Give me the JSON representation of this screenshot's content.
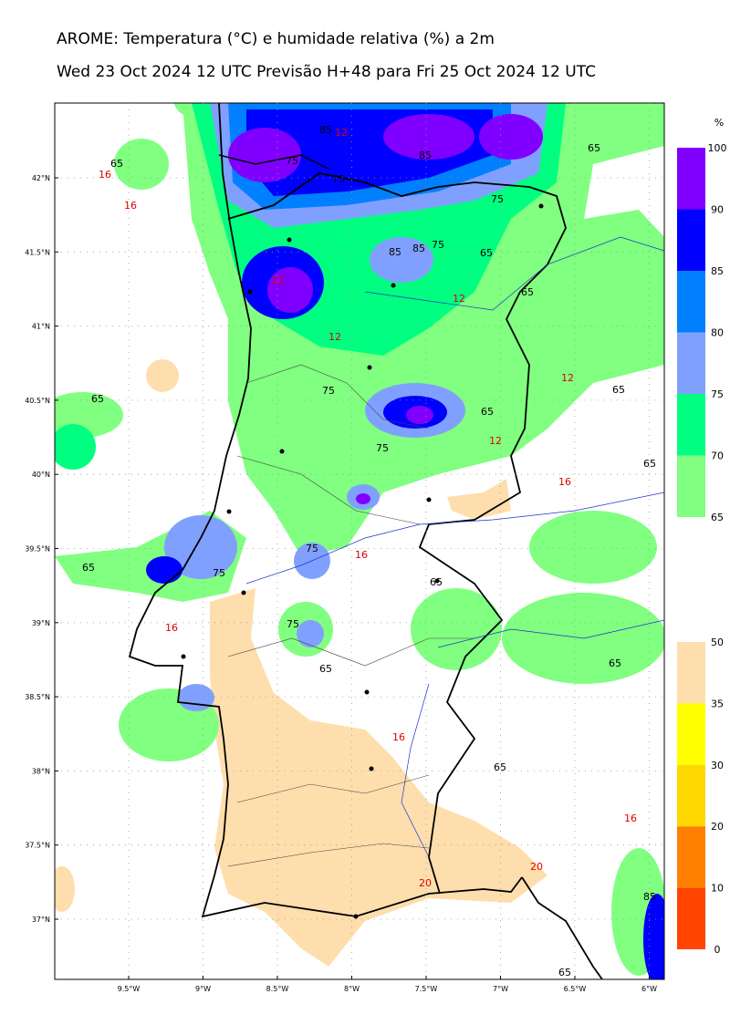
{
  "title": "AROME: Temperatura (°C) e humidade relativa (%) a 2m",
  "subtitle": "Wed 23 Oct 2024 12 UTC Previsão H+48 para Fri 25 Oct 2024 12 UTC",
  "map": {
    "lat_ticks": [
      "42°N",
      "41.5°N",
      "41°N",
      "40.5°N",
      "40°N",
      "39.5°N",
      "39°N",
      "38.5°N",
      "38°N",
      "37.5°N",
      "37°N"
    ],
    "lon_ticks": [
      "9.5°W",
      "9°W",
      "8.5°W",
      "8°W",
      "7.5°W",
      "7°W",
      "6.5°W",
      "6°W"
    ],
    "contour_labels": [
      {
        "text": "65",
        "color": "#000000"
      },
      {
        "text": "65",
        "color": "#000000"
      },
      {
        "text": "65",
        "color": "#000000"
      },
      {
        "text": "16",
        "color": "#e00000"
      },
      {
        "text": "16",
        "color": "#e00000"
      },
      {
        "text": "75",
        "color": "#000000"
      },
      {
        "text": "85",
        "color": "#000000"
      },
      {
        "text": "12",
        "color": "#e00000"
      },
      {
        "text": "85",
        "color": "#000000"
      },
      {
        "text": "75",
        "color": "#000000"
      },
      {
        "text": "75",
        "color": "#000000"
      },
      {
        "text": "65",
        "color": "#000000"
      },
      {
        "text": "85",
        "color": "#000000"
      },
      {
        "text": "85",
        "color": "#000000"
      },
      {
        "text": "75",
        "color": "#000000"
      },
      {
        "text": "65",
        "color": "#000000"
      },
      {
        "text": "12",
        "color": "#e00000"
      },
      {
        "text": "65",
        "color": "#000000"
      },
      {
        "text": "12",
        "color": "#e00000"
      },
      {
        "text": "12",
        "color": "#e00000"
      },
      {
        "text": "75",
        "color": "#000000"
      },
      {
        "text": "65",
        "color": "#000000"
      },
      {
        "text": "65",
        "color": "#000000"
      },
      {
        "text": "12",
        "color": "#e00000"
      },
      {
        "text": "75",
        "color": "#000000"
      },
      {
        "text": "65",
        "color": "#000000"
      },
      {
        "text": "16",
        "color": "#e00000"
      },
      {
        "text": "16",
        "color": "#e00000"
      },
      {
        "text": "75",
        "color": "#000000"
      },
      {
        "text": "75",
        "color": "#000000"
      },
      {
        "text": "65",
        "color": "#000000"
      },
      {
        "text": "16",
        "color": "#e00000"
      },
      {
        "text": "75",
        "color": "#000000"
      },
      {
        "text": "65",
        "color": "#000000"
      },
      {
        "text": "65",
        "color": "#000000"
      },
      {
        "text": "16",
        "color": "#e00000"
      },
      {
        "text": "65",
        "color": "#000000"
      },
      {
        "text": "16",
        "color": "#e00000"
      },
      {
        "text": "20",
        "color": "#e00000"
      },
      {
        "text": "20",
        "color": "#e00000"
      },
      {
        "text": "85",
        "color": "#000000"
      },
      {
        "text": "65",
        "color": "#000000"
      },
      {
        "text": "12",
        "color": "#e00000"
      }
    ]
  },
  "colorbar_humidity": {
    "unit": "%",
    "levels": [
      "100",
      "90",
      "85",
      "80",
      "75",
      "70",
      "65"
    ],
    "colors": [
      "#8000ff",
      "#0000ff",
      "#0080ff",
      "#80a0ff",
      "#00ff80",
      "#80ff80"
    ]
  },
  "colorbar_temperature": {
    "levels": [
      "50",
      "35",
      "30",
      "20",
      "10",
      "0"
    ],
    "colors": [
      "#ffdead",
      "#ffff00",
      "#ffd700",
      "#ff8000",
      "#ff4500"
    ]
  }
}
